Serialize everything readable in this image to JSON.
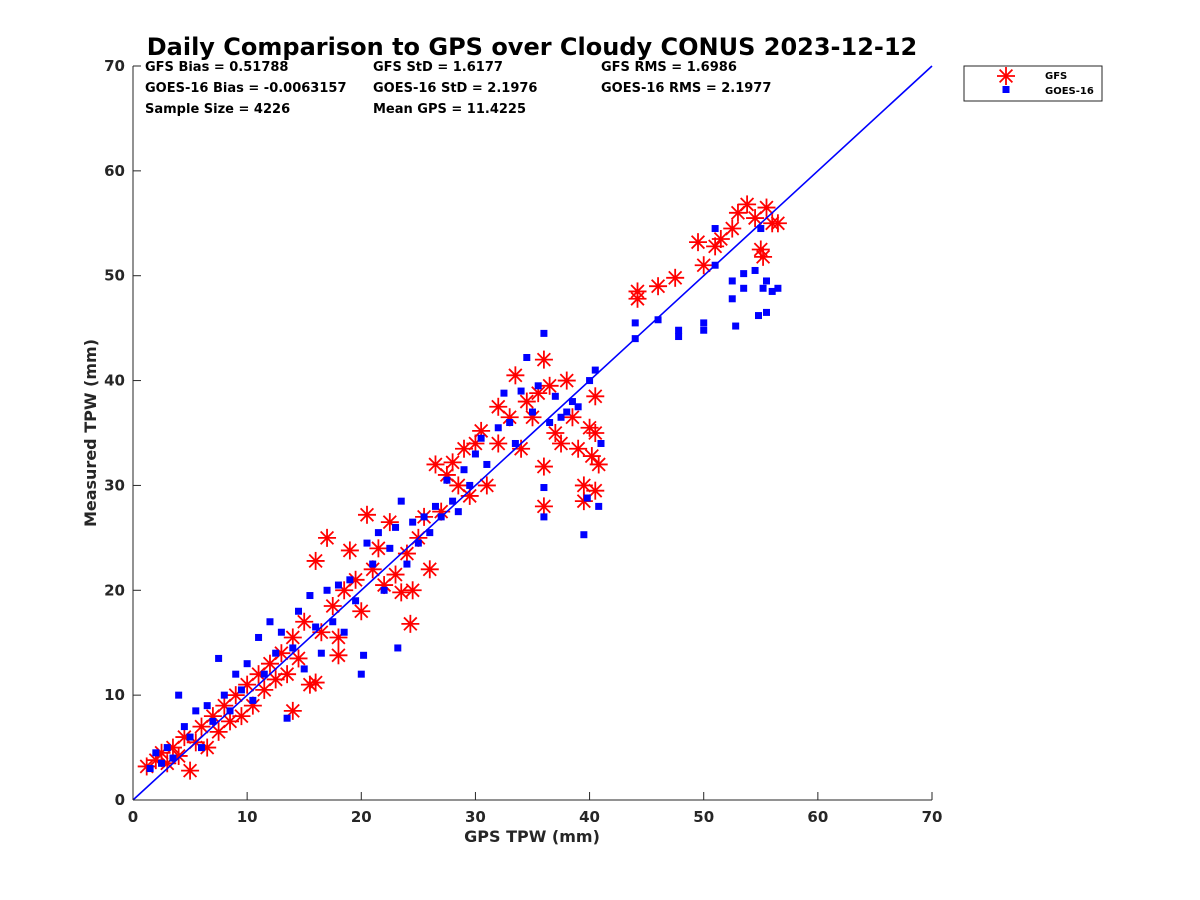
{
  "chart_data": {
    "type": "scatter",
    "title": "Daily Comparison to GPS over Cloudy CONUS 2023-12-12",
    "xlabel": "GPS TPW (mm)",
    "ylabel": "Measured TPW (mm)",
    "xlim": [
      0,
      70
    ],
    "ylim": [
      0,
      70
    ],
    "xticks": [
      "0",
      "10",
      "20",
      "30",
      "40",
      "50",
      "60",
      "70"
    ],
    "yticks": [
      "0",
      "10",
      "20",
      "30",
      "40",
      "50",
      "60",
      "70"
    ],
    "grid": false,
    "legend_position": "outside-top-right",
    "colors": {
      "gfs": "#ff0000",
      "goes": "#0000ff",
      "reference_line": "#0000ff"
    },
    "stats": [
      "GFS Bias = 0.51788",
      "GFS StD = 1.6177",
      "GFS RMS = 1.6986",
      "GOES-16 Bias = -0.0063157",
      "GOES-16 StD = 2.1976",
      "GOES-16 RMS = 2.1977",
      "Sample Size = 4226",
      "Mean GPS = 11.4225"
    ],
    "reference_line": {
      "x": [
        0,
        70
      ],
      "y": [
        0,
        70
      ]
    },
    "series": [
      {
        "name": "GFS",
        "marker": "asterisk",
        "points": [
          [
            1.2,
            3.2
          ],
          [
            2.0,
            3.8
          ],
          [
            2.5,
            4.5
          ],
          [
            3.0,
            3.5
          ],
          [
            3.5,
            5.0
          ],
          [
            4.0,
            4.2
          ],
          [
            4.5,
            6.0
          ],
          [
            5.0,
            2.8
          ],
          [
            5.5,
            5.5
          ],
          [
            6.0,
            7.0
          ],
          [
            6.5,
            5.0
          ],
          [
            7.0,
            8.0
          ],
          [
            7.5,
            6.5
          ],
          [
            8.0,
            9.0
          ],
          [
            8.5,
            7.5
          ],
          [
            9.0,
            10.0
          ],
          [
            9.5,
            8.0
          ],
          [
            10.0,
            11.0
          ],
          [
            10.5,
            9.0
          ],
          [
            11.0,
            12.0
          ],
          [
            11.5,
            10.5
          ],
          [
            12.0,
            13.0
          ],
          [
            12.5,
            11.5
          ],
          [
            13.0,
            14.0
          ],
          [
            13.5,
            12.0
          ],
          [
            14.0,
            8.5
          ],
          [
            14.0,
            15.5
          ],
          [
            14.5,
            13.5
          ],
          [
            15.0,
            17.0
          ],
          [
            15.5,
            11.0
          ],
          [
            16.0,
            11.2
          ],
          [
            16.0,
            22.8
          ],
          [
            16.5,
            16.0
          ],
          [
            17.0,
            25.0
          ],
          [
            17.5,
            18.5
          ],
          [
            18.0,
            15.5
          ],
          [
            18.0,
            13.8
          ],
          [
            18.5,
            20.0
          ],
          [
            19.0,
            23.8
          ],
          [
            19.5,
            21.0
          ],
          [
            20.0,
            18.0
          ],
          [
            20.5,
            27.2
          ],
          [
            21.0,
            22.0
          ],
          [
            21.5,
            24.0
          ],
          [
            22.0,
            20.5
          ],
          [
            22.5,
            26.5
          ],
          [
            23.0,
            21.5
          ],
          [
            23.5,
            19.8
          ],
          [
            24.0,
            23.5
          ],
          [
            24.3,
            16.8
          ],
          [
            24.5,
            20.0
          ],
          [
            25.0,
            25.0
          ],
          [
            25.5,
            27.0
          ],
          [
            26.0,
            22.0
          ],
          [
            26.5,
            32.0
          ],
          [
            27.0,
            27.5
          ],
          [
            27.5,
            31.0
          ],
          [
            28.0,
            32.2
          ],
          [
            28.5,
            30.0
          ],
          [
            29.0,
            33.5
          ],
          [
            29.5,
            29.0
          ],
          [
            30.0,
            34.0
          ],
          [
            30.5,
            35.2
          ],
          [
            31.0,
            30.0
          ],
          [
            32.0,
            37.5
          ],
          [
            32.0,
            34.0
          ],
          [
            33.0,
            36.5
          ],
          [
            33.5,
            40.5
          ],
          [
            34.0,
            33.5
          ],
          [
            34.5,
            38.0
          ],
          [
            35.0,
            36.5
          ],
          [
            35.5,
            38.8
          ],
          [
            36.0,
            28.0
          ],
          [
            36.0,
            31.8
          ],
          [
            36.0,
            42.0
          ],
          [
            36.5,
            39.5
          ],
          [
            37.0,
            35.0
          ],
          [
            37.5,
            34.0
          ],
          [
            38.0,
            40.0
          ],
          [
            38.5,
            36.5
          ],
          [
            39.0,
            33.5
          ],
          [
            39.5,
            28.5
          ],
          [
            39.5,
            30.0
          ],
          [
            40.0,
            35.5
          ],
          [
            40.2,
            32.8
          ],
          [
            40.5,
            29.5
          ],
          [
            40.5,
            38.5
          ],
          [
            40.5,
            35.0
          ],
          [
            40.8,
            32.0
          ],
          [
            44.2,
            48.5
          ],
          [
            44.2,
            47.8
          ],
          [
            46.0,
            49.0
          ],
          [
            47.5,
            49.8
          ],
          [
            49.5,
            53.2
          ],
          [
            50.0,
            51.0
          ],
          [
            51.0,
            52.8
          ],
          [
            51.5,
            53.5
          ],
          [
            52.5,
            54.5
          ],
          [
            53.0,
            56.0
          ],
          [
            53.8,
            56.8
          ],
          [
            54.5,
            55.5
          ],
          [
            55.0,
            52.5
          ],
          [
            55.2,
            51.8
          ],
          [
            55.5,
            56.5
          ],
          [
            56.0,
            55.0
          ],
          [
            56.5,
            55.0
          ]
        ]
      },
      {
        "name": "GOES-16",
        "marker": "square",
        "points": [
          [
            1.5,
            3.0
          ],
          [
            2.0,
            4.5
          ],
          [
            2.5,
            3.5
          ],
          [
            3.0,
            5.0
          ],
          [
            3.5,
            4.0
          ],
          [
            4.0,
            10.0
          ],
          [
            4.5,
            7.0
          ],
          [
            5.0,
            6.0
          ],
          [
            5.5,
            8.5
          ],
          [
            6.0,
            5.0
          ],
          [
            6.5,
            9.0
          ],
          [
            7.0,
            7.5
          ],
          [
            7.5,
            13.5
          ],
          [
            8.0,
            10.0
          ],
          [
            8.5,
            8.5
          ],
          [
            9.0,
            12.0
          ],
          [
            9.5,
            10.5
          ],
          [
            10.0,
            13.0
          ],
          [
            10.5,
            9.5
          ],
          [
            11.0,
            15.5
          ],
          [
            11.5,
            12.0
          ],
          [
            12.0,
            17.0
          ],
          [
            12.5,
            14.0
          ],
          [
            13.0,
            16.0
          ],
          [
            13.5,
            7.8
          ],
          [
            14.0,
            14.5
          ],
          [
            14.5,
            18.0
          ],
          [
            15.0,
            12.5
          ],
          [
            15.5,
            19.5
          ],
          [
            16.0,
            16.5
          ],
          [
            16.5,
            14.0
          ],
          [
            17.0,
            20.0
          ],
          [
            17.5,
            17.0
          ],
          [
            18.0,
            20.5
          ],
          [
            18.5,
            16.0
          ],
          [
            19.0,
            21.0
          ],
          [
            19.5,
            19.0
          ],
          [
            20.0,
            12.0
          ],
          [
            20.2,
            13.8
          ],
          [
            20.5,
            24.5
          ],
          [
            21.0,
            22.5
          ],
          [
            21.5,
            25.5
          ],
          [
            22.0,
            20.0
          ],
          [
            22.5,
            24.0
          ],
          [
            23.0,
            26.0
          ],
          [
            23.2,
            14.5
          ],
          [
            23.5,
            28.5
          ],
          [
            24.0,
            22.5
          ],
          [
            24.5,
            26.5
          ],
          [
            25.0,
            24.5
          ],
          [
            25.5,
            27.0
          ],
          [
            26.0,
            25.5
          ],
          [
            26.5,
            28.0
          ],
          [
            27.0,
            27.0
          ],
          [
            27.5,
            30.5
          ],
          [
            28.0,
            28.5
          ],
          [
            28.5,
            27.5
          ],
          [
            29.0,
            31.5
          ],
          [
            29.5,
            30.0
          ],
          [
            30.0,
            33.0
          ],
          [
            30.5,
            34.5
          ],
          [
            31.0,
            32.0
          ],
          [
            32.0,
            35.5
          ],
          [
            32.5,
            38.8
          ],
          [
            33.0,
            36.0
          ],
          [
            33.5,
            34.0
          ],
          [
            34.0,
            39.0
          ],
          [
            34.5,
            42.2
          ],
          [
            35.0,
            37.0
          ],
          [
            35.5,
            39.5
          ],
          [
            36.0,
            44.5
          ],
          [
            36.0,
            27.0
          ],
          [
            36.0,
            29.8
          ],
          [
            36.5,
            36.0
          ],
          [
            37.0,
            38.5
          ],
          [
            37.5,
            36.5
          ],
          [
            38.0,
            37.0
          ],
          [
            38.5,
            38.0
          ],
          [
            39.0,
            37.5
          ],
          [
            39.5,
            25.3
          ],
          [
            39.8,
            28.8
          ],
          [
            40.0,
            40.0
          ],
          [
            40.5,
            41.0
          ],
          [
            40.8,
            28.0
          ],
          [
            41.0,
            34.0
          ],
          [
            44.0,
            44.0
          ],
          [
            44.0,
            45.5
          ],
          [
            46.0,
            45.8
          ],
          [
            47.8,
            44.8
          ],
          [
            47.8,
            44.2
          ],
          [
            50.0,
            45.5
          ],
          [
            50.0,
            44.8
          ],
          [
            51.0,
            51.0
          ],
          [
            51.0,
            54.5
          ],
          [
            52.5,
            47.8
          ],
          [
            52.5,
            49.5
          ],
          [
            52.8,
            45.2
          ],
          [
            53.5,
            48.8
          ],
          [
            53.5,
            50.2
          ],
          [
            54.5,
            50.5
          ],
          [
            54.8,
            46.2
          ],
          [
            55.2,
            48.8
          ],
          [
            55.5,
            49.5
          ],
          [
            55.5,
            46.5
          ],
          [
            56.0,
            48.5
          ],
          [
            56.5,
            48.8
          ],
          [
            55.0,
            54.5
          ]
        ]
      }
    ]
  }
}
